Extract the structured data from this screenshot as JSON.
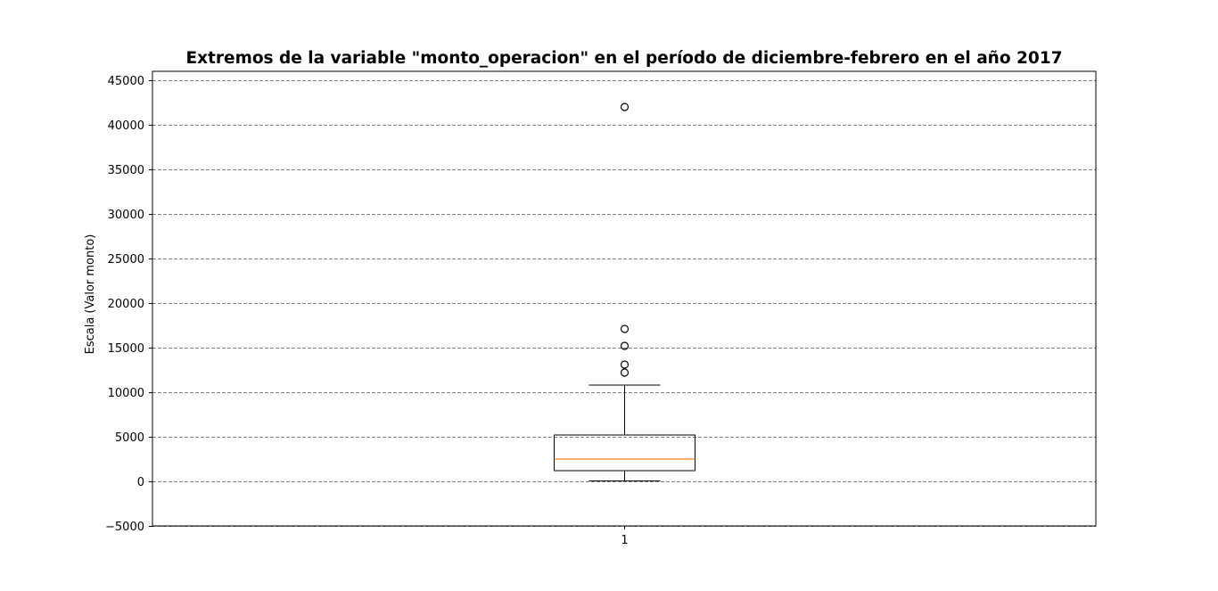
{
  "chart_data": {
    "type": "boxplot",
    "title": "Extremos de la variable \"monto_operacion\" en el período de diciembre-febrero en el año 2017",
    "xlabel": "",
    "ylabel": "Escala (Valor monto)",
    "ylim": [
      -5000,
      46000
    ],
    "yticks": [
      -5000,
      0,
      5000,
      10000,
      15000,
      20000,
      25000,
      30000,
      35000,
      40000,
      45000
    ],
    "ytick_labels": [
      "−5000",
      "0",
      "5000",
      "10000",
      "15000",
      "20000",
      "25000",
      "30000",
      "35000",
      "40000",
      "45000"
    ],
    "xtick_labels": [
      "1"
    ],
    "grid": {
      "axis": "y",
      "style": "dashed",
      "color": "#808080"
    },
    "boxes": [
      {
        "label": "1",
        "whisker_low": 50,
        "q1": 1200,
        "median": 2500,
        "q3": 5200,
        "whisker_high": 10800,
        "fliers": [
          12200,
          13100,
          15200,
          17100,
          42000
        ]
      }
    ],
    "colors": {
      "box": "#000000",
      "median": "#ff7f0e",
      "grid": "#808080"
    }
  }
}
